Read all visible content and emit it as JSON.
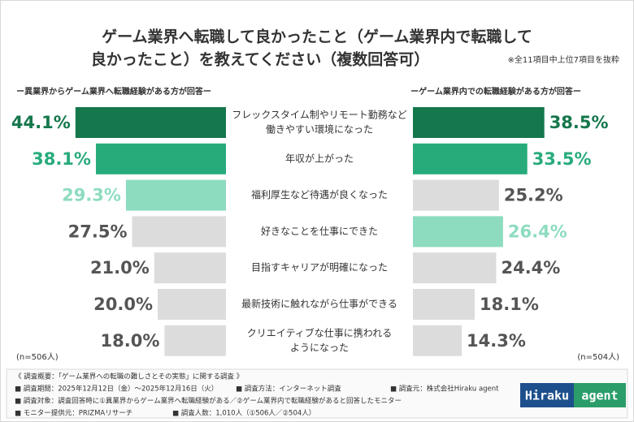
{
  "chart_data": {
    "type": "butterfly-bar",
    "title": [
      "ゲーム業界へ転職して良かったこと（ゲーム業界内で転職して",
      "良かったこと）を教えてください（複数回答可）"
    ],
    "note": "※全11項目中上位7項目を抜粋",
    "categories": [
      [
        "フレックスタイム制やリモート勤務など",
        "働きやすい環境になった"
      ],
      "年収が上がった",
      "福利厚生など待遇が良くなった",
      "好きなことを仕事にできた",
      "目指すキャリアが明確になった",
      "最新技術に触れながら仕事ができる",
      [
        "クリエイティブな仕事に携われる",
        "ようになった"
      ]
    ],
    "series": [
      {
        "name": "ー異業界からゲーム業界へ転職経験がある方が回答ー",
        "n_label": "(n=506人)",
        "values": [
          44.1,
          38.1,
          29.3,
          27.5,
          21.0,
          20.0,
          18.0
        ],
        "value_labels": [
          "44.1%",
          "38.1%",
          "29.3%",
          "27.5%",
          "21.0%",
          "20.0%",
          "18.0%"
        ],
        "colors": [
          "#15774c",
          "#27ab7b",
          "#8ddcbf",
          "#dcdcdc",
          "#dcdcdc",
          "#dcdcdc",
          "#dcdcdc"
        ],
        "label_colors": [
          "#15774c",
          "#27ab7b",
          "#8ddcbf",
          "#555555",
          "#555555",
          "#555555",
          "#555555"
        ]
      },
      {
        "name": "ーゲーム業界内での転職経験がある方が回答ー",
        "n_label": "(n=504人)",
        "values": [
          38.5,
          33.5,
          25.2,
          26.4,
          24.4,
          18.1,
          14.3
        ],
        "value_labels": [
          "38.5%",
          "33.5%",
          "25.2%",
          "26.4%",
          "24.4%",
          "18.1%",
          "14.3%"
        ],
        "colors": [
          "#15774c",
          "#27ab7b",
          "#dcdcdc",
          "#8ddcbf",
          "#dcdcdc",
          "#dcdcdc",
          "#dcdcdc"
        ],
        "label_colors": [
          "#15774c",
          "#27ab7b",
          "#555555",
          "#8ddcbf",
          "#555555",
          "#555555",
          "#555555"
        ]
      }
    ]
  },
  "footer": {
    "rows": [
      [
        "《 調査概要：「ゲーム業界への転職の難しさとその実態」に関する調査 》"
      ],
      [
        "■ 調査期間：2025年12月12日（金）〜2025年12月16日（火）",
        "■ 調査方法：インターネット調査",
        "■ 調査元：株式会社Hiraku agent"
      ],
      [
        "■ 調査対象：調査回答時に①異業界からゲーム業界へ転職経験がある／②ゲーム業界内で転職経験があると回答したモニター"
      ],
      [
        "■ モニター提供元：PRIZMAリサーチ",
        "■ 調査人数：1,010人（①506人／②504人）"
      ]
    ]
  },
  "logo": [
    "Hiraku",
    "agent"
  ]
}
